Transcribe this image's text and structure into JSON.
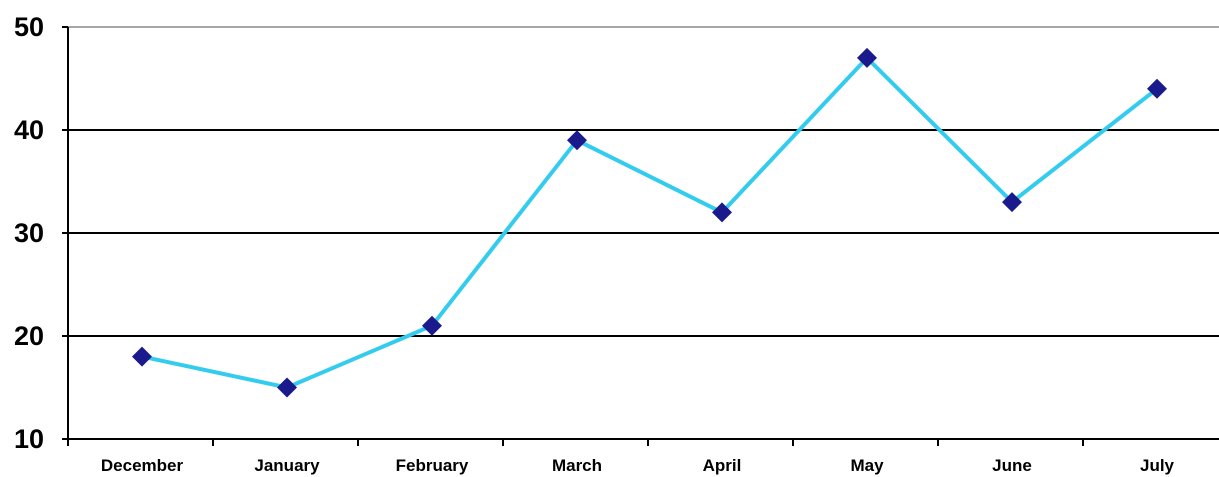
{
  "chart_data": {
    "type": "line",
    "title": "",
    "xlabel": "",
    "ylabel": "",
    "categories": [
      "December",
      "January",
      "February",
      "March",
      "April",
      "May",
      "June",
      "July"
    ],
    "series": [
      {
        "values": [
          18,
          15,
          21,
          39,
          32,
          47,
          33,
          44
        ]
      }
    ],
    "ylim": [
      10,
      50
    ],
    "yticks": [
      10,
      20,
      30,
      40,
      50
    ],
    "ytick_labels": [
      "10",
      "20",
      "30",
      "40",
      "50"
    ],
    "grid": "horizontal",
    "legend": "none",
    "colors": {
      "line": "#33CCEE",
      "marker": "#1A1A8C",
      "gridline": "#000000",
      "axis": "#000000"
    }
  }
}
